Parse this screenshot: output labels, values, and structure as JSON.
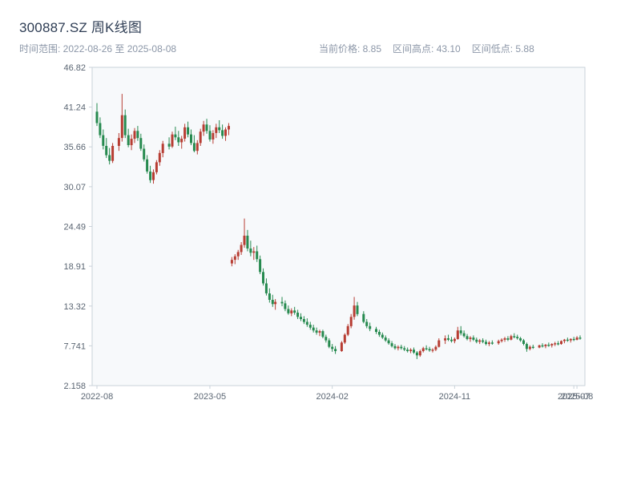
{
  "header": {
    "title": "300887.SZ 周K线图",
    "time_range_label": "时间范围: 2022-08-26 至 2025-08-08",
    "current_price_label": "当前价格: 8.85",
    "range_high_label": "区间高点: 43.10",
    "range_low_label": "区间低点: 5.88"
  },
  "chart_data": {
    "type": "candlestick",
    "title": "300887.SZ 周K线图",
    "symbol": "300887.SZ",
    "period": "weekly",
    "current_price": 8.85,
    "range_high": 43.1,
    "range_low": 5.88,
    "ylim": [
      2.158,
      46.82
    ],
    "grid": false,
    "y_ticks": [
      "46.82",
      "41.24",
      "35.66",
      "30.07",
      "24.49",
      "18.91",
      "13.32",
      "7.741",
      "2.158"
    ],
    "x_ticks": [
      {
        "label": "2022-08",
        "date": "2022-08-26"
      },
      {
        "label": "2023-05",
        "date": "2023-05-05"
      },
      {
        "label": "2024-02",
        "date": "2024-02-02"
      },
      {
        "label": "2024-11",
        "date": "2024-11-01"
      },
      {
        "label": "2025-07",
        "date": "2025-07-25"
      },
      {
        "label": "2025-08",
        "date": "2025-08-01"
      }
    ],
    "colors": {
      "up": "#b73d33",
      "down": "#268a4f",
      "plot_bg": "#f7f9fb",
      "border": "#c9d2da",
      "tick_text": "#5b6673"
    },
    "columns": [
      "date",
      "open",
      "high",
      "low",
      "close"
    ],
    "candles": [
      [
        "2022-08-26",
        40.6,
        41.8,
        38.6,
        39.0
      ],
      [
        "2022-09-02",
        39.0,
        39.8,
        36.9,
        37.3
      ],
      [
        "2022-09-09",
        37.3,
        38.1,
        35.3,
        35.8
      ],
      [
        "2022-09-16",
        35.8,
        36.9,
        34.1,
        34.5
      ],
      [
        "2022-09-23",
        34.5,
        35.5,
        33.2,
        33.7
      ],
      [
        "2022-09-30",
        33.7,
        36.2,
        33.4,
        35.8
      ],
      [
        "2022-10-14",
        35.8,
        37.6,
        35.1,
        36.9
      ],
      [
        "2022-10-21",
        36.9,
        43.1,
        36.4,
        40.1
      ],
      [
        "2022-10-28",
        40.1,
        40.9,
        36.9,
        37.3
      ],
      [
        "2022-11-04",
        37.3,
        38.2,
        35.6,
        35.9
      ],
      [
        "2022-11-11",
        35.9,
        37.4,
        35.2,
        36.8
      ],
      [
        "2022-11-18",
        36.8,
        38.3,
        36.2,
        37.9
      ],
      [
        "2022-11-25",
        37.9,
        38.6,
        36.5,
        36.9
      ],
      [
        "2022-12-02",
        36.9,
        37.5,
        35.1,
        35.4
      ],
      [
        "2022-12-09",
        35.4,
        36.0,
        33.6,
        33.9
      ],
      [
        "2022-12-16",
        33.9,
        34.5,
        31.9,
        32.2
      ],
      [
        "2022-12-23",
        32.2,
        33.0,
        30.6,
        31.0
      ],
      [
        "2022-12-30",
        31.0,
        32.5,
        30.5,
        32.1
      ],
      [
        "2023-01-06",
        32.1,
        33.8,
        31.8,
        33.5
      ],
      [
        "2023-01-13",
        33.5,
        35.2,
        33.0,
        34.8
      ],
      [
        "2023-01-20",
        34.8,
        36.5,
        34.2,
        36.1
      ],
      [
        "2023-02-03",
        36.1,
        37.0,
        35.3,
        35.7
      ],
      [
        "2023-02-10",
        35.7,
        37.8,
        35.5,
        37.4
      ],
      [
        "2023-02-17",
        37.4,
        38.5,
        36.6,
        37.0
      ],
      [
        "2023-02-24",
        37.0,
        37.9,
        35.8,
        36.3
      ],
      [
        "2023-03-03",
        36.3,
        37.2,
        35.4,
        36.8
      ],
      [
        "2023-03-10",
        36.8,
        38.9,
        36.4,
        38.4
      ],
      [
        "2023-03-17",
        38.4,
        39.2,
        37.0,
        37.4
      ],
      [
        "2023-03-24",
        37.4,
        38.1,
        35.9,
        36.2
      ],
      [
        "2023-03-31",
        36.2,
        37.3,
        34.9,
        35.1
      ],
      [
        "2023-04-07",
        35.1,
        36.6,
        34.6,
        36.2
      ],
      [
        "2023-04-14",
        36.2,
        38.2,
        35.8,
        37.8
      ],
      [
        "2023-04-21",
        37.8,
        39.3,
        37.2,
        38.8
      ],
      [
        "2023-04-28",
        38.8,
        39.6,
        37.5,
        37.9
      ],
      [
        "2023-05-05",
        37.9,
        38.7,
        36.4,
        36.7
      ],
      [
        "2023-05-12",
        36.7,
        38.0,
        36.1,
        37.6
      ],
      [
        "2023-05-19",
        37.6,
        38.9,
        36.9,
        38.4
      ],
      [
        "2023-05-26",
        38.4,
        39.4,
        37.6,
        38.0
      ],
      [
        "2023-06-02",
        38.0,
        38.8,
        36.8,
        37.2
      ],
      [
        "2023-06-09",
        37.2,
        38.4,
        36.5,
        38.1
      ],
      [
        "2023-06-16",
        38.1,
        39.0,
        37.3,
        38.6
      ],
      [
        "2023-06-23",
        19.3,
        20.2,
        18.9,
        19.8
      ],
      [
        "2023-06-30",
        19.8,
        20.6,
        19.2,
        20.3
      ],
      [
        "2023-07-07",
        20.3,
        21.2,
        19.8,
        20.9
      ],
      [
        "2023-07-14",
        20.9,
        22.3,
        20.5,
        21.9
      ],
      [
        "2023-07-21",
        21.9,
        25.6,
        21.5,
        23.2
      ],
      [
        "2023-07-28",
        23.2,
        24.0,
        21.0,
        21.4
      ],
      [
        "2023-08-04",
        21.4,
        22.5,
        20.3,
        20.8
      ],
      [
        "2023-08-11",
        20.8,
        21.6,
        19.8,
        21.0
      ],
      [
        "2023-08-18",
        21.0,
        21.8,
        19.5,
        19.9
      ],
      [
        "2023-08-25",
        19.9,
        20.4,
        17.8,
        18.1
      ],
      [
        "2023-09-01",
        18.1,
        18.6,
        16.2,
        16.5
      ],
      [
        "2023-09-08",
        16.5,
        17.2,
        14.8,
        15.1
      ],
      [
        "2023-09-15",
        15.1,
        15.8,
        13.8,
        14.2
      ],
      [
        "2023-09-22",
        14.2,
        14.9,
        13.2,
        13.6
      ],
      [
        "2023-09-28",
        13.6,
        14.3,
        12.8,
        13.9
      ],
      [
        "2023-10-13",
        13.9,
        14.6,
        13.3,
        13.7
      ],
      [
        "2023-10-20",
        13.7,
        14.1,
        12.6,
        12.9
      ],
      [
        "2023-10-27",
        12.9,
        13.4,
        12.1,
        12.3
      ],
      [
        "2023-11-03",
        12.3,
        13.0,
        11.9,
        12.7
      ],
      [
        "2023-11-10",
        12.7,
        13.2,
        12.1,
        12.4
      ],
      [
        "2023-11-17",
        12.4,
        12.8,
        11.5,
        11.8
      ],
      [
        "2023-11-24",
        11.8,
        12.3,
        11.2,
        11.5
      ],
      [
        "2023-12-01",
        11.5,
        11.9,
        10.8,
        11.1
      ],
      [
        "2023-12-08",
        11.1,
        11.6,
        10.4,
        10.7
      ],
      [
        "2023-12-15",
        10.7,
        11.1,
        10.0,
        10.3
      ],
      [
        "2023-12-22",
        10.3,
        10.7,
        9.6,
        9.9
      ],
      [
        "2023-12-29",
        9.9,
        10.3,
        9.3,
        9.6
      ],
      [
        "2024-01-05",
        9.6,
        10.0,
        9.1,
        9.8
      ],
      [
        "2024-01-12",
        9.8,
        10.0,
        8.8,
        9.0
      ],
      [
        "2024-01-19",
        9.0,
        9.3,
        8.2,
        8.5
      ],
      [
        "2024-01-26",
        8.5,
        8.8,
        7.4,
        7.6
      ],
      [
        "2024-02-02",
        7.6,
        8.0,
        6.9,
        7.3
      ],
      [
        "2024-02-09",
        7.3,
        7.7,
        6.6,
        7.0
      ],
      [
        "2024-02-23",
        7.0,
        8.4,
        6.9,
        8.2
      ],
      [
        "2024-03-01",
        8.2,
        9.5,
        8.0,
        9.3
      ],
      [
        "2024-03-08",
        9.3,
        10.8,
        9.1,
        10.5
      ],
      [
        "2024-03-15",
        10.5,
        12.2,
        10.2,
        11.8
      ],
      [
        "2024-03-22",
        11.8,
        14.6,
        11.4,
        13.4
      ],
      [
        "2024-03-29",
        13.4,
        13.9,
        11.9,
        12.2
      ],
      [
        "2024-04-12",
        12.2,
        12.6,
        10.9,
        11.1
      ],
      [
        "2024-04-19",
        11.1,
        11.5,
        10.2,
        10.5
      ],
      [
        "2024-04-26",
        10.5,
        11.0,
        9.8,
        10.1
      ],
      [
        "2024-05-10",
        10.1,
        10.4,
        9.4,
        9.7
      ],
      [
        "2024-05-17",
        9.7,
        10.0,
        9.0,
        9.3
      ],
      [
        "2024-05-24",
        9.3,
        9.6,
        8.7,
        8.9
      ],
      [
        "2024-05-31",
        8.9,
        9.2,
        8.3,
        8.5
      ],
      [
        "2024-06-07",
        8.5,
        8.8,
        7.9,
        8.1
      ],
      [
        "2024-06-14",
        8.1,
        8.4,
        7.5,
        7.7
      ],
      [
        "2024-06-21",
        7.7,
        8.0,
        7.2,
        7.4
      ],
      [
        "2024-06-28",
        7.4,
        7.8,
        7.1,
        7.6
      ],
      [
        "2024-07-05",
        7.6,
        7.9,
        7.2,
        7.4
      ],
      [
        "2024-07-12",
        7.4,
        7.7,
        7.0,
        7.2
      ],
      [
        "2024-07-19",
        7.2,
        7.5,
        6.8,
        7.0
      ],
      [
        "2024-07-26",
        7.0,
        7.4,
        6.7,
        7.2
      ],
      [
        "2024-08-02",
        7.2,
        7.5,
        6.6,
        6.8
      ],
      [
        "2024-08-09",
        6.8,
        7.0,
        5.88,
        6.4
      ],
      [
        "2024-08-16",
        6.4,
        7.2,
        6.2,
        7.0
      ],
      [
        "2024-08-23",
        7.0,
        7.6,
        6.8,
        7.4
      ],
      [
        "2024-08-30",
        7.4,
        7.8,
        7.1,
        7.3
      ],
      [
        "2024-09-06",
        7.3,
        7.6,
        6.9,
        7.1
      ],
      [
        "2024-09-13",
        7.1,
        7.4,
        6.8,
        7.2
      ],
      [
        "2024-09-20",
        7.2,
        7.8,
        7.0,
        7.6
      ],
      [
        "2024-09-27",
        7.6,
        8.8,
        7.5,
        8.5
      ],
      [
        "2024-10-11",
        8.5,
        9.2,
        8.0,
        8.8
      ],
      [
        "2024-10-18",
        8.8,
        9.3,
        8.4,
        8.6
      ],
      [
        "2024-10-25",
        8.6,
        9.0,
        8.2,
        8.4
      ],
      [
        "2024-11-01",
        8.4,
        8.9,
        8.1,
        8.7
      ],
      [
        "2024-11-08",
        8.7,
        10.4,
        8.6,
        9.9
      ],
      [
        "2024-11-15",
        9.9,
        10.5,
        9.2,
        9.5
      ],
      [
        "2024-11-22",
        9.5,
        9.9,
        8.9,
        9.1
      ],
      [
        "2024-11-29",
        9.1,
        9.4,
        8.5,
        8.7
      ],
      [
        "2024-12-06",
        8.7,
        9.1,
        8.3,
        8.9
      ],
      [
        "2024-12-13",
        8.9,
        9.2,
        8.4,
        8.6
      ],
      [
        "2024-12-20",
        8.6,
        8.9,
        8.1,
        8.3
      ],
      [
        "2024-12-27",
        8.3,
        8.7,
        8.0,
        8.5
      ],
      [
        "2025-01-03",
        8.5,
        8.8,
        8.1,
        8.3
      ],
      [
        "2025-01-10",
        8.3,
        8.6,
        7.8,
        8.0
      ],
      [
        "2025-01-17",
        8.0,
        8.4,
        7.7,
        8.2
      ],
      [
        "2025-01-24",
        8.2,
        8.5,
        7.9,
        8.1
      ],
      [
        "2025-02-07",
        8.1,
        8.6,
        7.9,
        8.4
      ],
      [
        "2025-02-14",
        8.4,
        8.8,
        8.2,
        8.6
      ],
      [
        "2025-02-21",
        8.6,
        9.0,
        8.3,
        8.8
      ],
      [
        "2025-02-28",
        8.8,
        9.1,
        8.4,
        8.6
      ],
      [
        "2025-03-07",
        8.6,
        9.3,
        8.5,
        9.1
      ],
      [
        "2025-03-14",
        9.1,
        9.5,
        8.8,
        9.0
      ],
      [
        "2025-03-21",
        9.0,
        9.3,
        8.6,
        8.8
      ],
      [
        "2025-03-28",
        8.8,
        9.0,
        8.3,
        8.5
      ],
      [
        "2025-04-04",
        8.5,
        8.7,
        7.8,
        8.0
      ],
      [
        "2025-04-11",
        8.0,
        8.2,
        6.9,
        7.3
      ],
      [
        "2025-04-18",
        7.3,
        7.8,
        7.1,
        7.6
      ],
      [
        "2025-04-25",
        7.6,
        7.9,
        7.3,
        7.5
      ],
      [
        "2025-05-09",
        7.5,
        7.9,
        7.4,
        7.8
      ],
      [
        "2025-05-16",
        7.8,
        8.1,
        7.5,
        7.7
      ],
      [
        "2025-05-23",
        7.7,
        8.0,
        7.4,
        7.9
      ],
      [
        "2025-05-30",
        7.9,
        8.2,
        7.6,
        7.8
      ],
      [
        "2025-06-06",
        7.8,
        8.1,
        7.5,
        8.0
      ],
      [
        "2025-06-13",
        8.0,
        8.3,
        7.7,
        8.1
      ],
      [
        "2025-06-20",
        8.1,
        8.4,
        7.8,
        8.0
      ],
      [
        "2025-06-27",
        8.0,
        8.5,
        7.9,
        8.4
      ],
      [
        "2025-07-04",
        8.4,
        8.7,
        8.1,
        8.6
      ],
      [
        "2025-07-11",
        8.6,
        8.9,
        8.3,
        8.5
      ],
      [
        "2025-07-18",
        8.5,
        8.8,
        8.2,
        8.7
      ],
      [
        "2025-07-25",
        8.7,
        9.0,
        8.4,
        8.6
      ],
      [
        "2025-08-01",
        8.6,
        9.1,
        8.5,
        8.9
      ],
      [
        "2025-08-08",
        8.9,
        9.2,
        8.6,
        8.85
      ]
    ]
  }
}
